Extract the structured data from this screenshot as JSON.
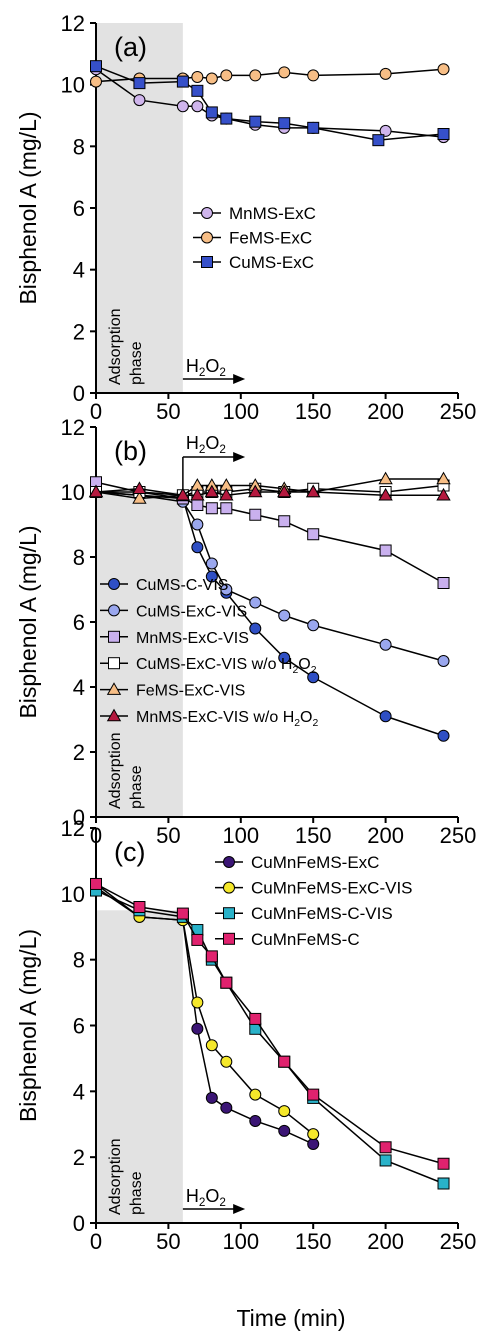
{
  "figure": {
    "xlabel": "Time (min)"
  },
  "chart_data": [
    {
      "type": "line",
      "panel_label": "(a)",
      "ylabel": "Bisphenol A (mg/L)",
      "xlim": [
        0,
        250
      ],
      "ylim": [
        0,
        12
      ],
      "xticks": [
        0,
        50,
        100,
        150,
        200,
        250
      ],
      "yticks": [
        0,
        2,
        4,
        6,
        8,
        10,
        12
      ],
      "shaded_region": {
        "x": [
          0,
          60
        ],
        "y": [
          0,
          12
        ],
        "label_lines": [
          "Adsorption",
          "phase"
        ],
        "color": "#e2e2e2"
      },
      "h2o2_arrow": {
        "x_start": 60,
        "x_end": 103,
        "label": {
          "base": "H",
          "sub1": "2",
          "mid": "O",
          "sub2": "2"
        }
      },
      "legend": "center-right",
      "series": [
        {
          "name": "MnMS-ExC",
          "marker": "circle",
          "color": "#cfb5ec",
          "x": [
            0,
            30,
            60,
            70,
            80,
            90,
            110,
            130,
            150,
            200,
            240
          ],
          "y": [
            10.5,
            9.5,
            9.3,
            9.3,
            9.0,
            8.9,
            8.7,
            8.6,
            8.6,
            8.5,
            8.3
          ]
        },
        {
          "name": "FeMS-ExC",
          "marker": "circle",
          "color": "#f7be86",
          "x": [
            0,
            30,
            60,
            70,
            80,
            90,
            110,
            130,
            150,
            200,
            240
          ],
          "y": [
            10.1,
            10.2,
            10.2,
            10.25,
            10.2,
            10.3,
            10.3,
            10.4,
            10.3,
            10.35,
            10.5
          ]
        },
        {
          "name": "CuMS-ExC",
          "marker": "square",
          "color": "#3650c9",
          "x": [
            0,
            30,
            60,
            70,
            80,
            90,
            110,
            130,
            150,
            195,
            240
          ],
          "y": [
            10.6,
            10.05,
            10.1,
            9.8,
            9.1,
            8.9,
            8.8,
            8.75,
            8.6,
            8.2,
            8.4
          ]
        }
      ]
    },
    {
      "type": "line",
      "panel_label": "(b)",
      "ylabel": "Bisphenol A (mg/L)",
      "xlim": [
        0,
        250
      ],
      "ylim": [
        0,
        12
      ],
      "xticks": [
        0,
        50,
        100,
        150,
        200,
        250
      ],
      "yticks": [
        0,
        2,
        4,
        6,
        8,
        10,
        12
      ],
      "shaded_region": {
        "x": [
          0,
          60
        ],
        "y": [
          0,
          10
        ],
        "label_lines": [
          "Adsorption",
          "phase"
        ],
        "color": "#e2e2e2"
      },
      "h2o2_arrow": {
        "x_start": 60,
        "x_end": 103,
        "label": {
          "base": "H",
          "sub1": "2",
          "mid": "O",
          "sub2": "2"
        }
      },
      "legend": "lower-left",
      "series": [
        {
          "name": "CuMS-C-VIS",
          "marker": "circle",
          "color": "#2f4fc4",
          "x": [
            0,
            30,
            60,
            70,
            80,
            90,
            110,
            130,
            150,
            200,
            240
          ],
          "y": [
            10.0,
            9.9,
            9.8,
            8.3,
            7.4,
            6.9,
            5.8,
            4.9,
            4.3,
            3.1,
            2.5
          ]
        },
        {
          "name": "CuMS-ExC-VIS",
          "marker": "circle",
          "color": "#9aa7ee",
          "x": [
            0,
            30,
            60,
            70,
            80,
            90,
            110,
            130,
            150,
            200,
            240
          ],
          "y": [
            10.0,
            9.9,
            9.7,
            9.0,
            7.8,
            7.0,
            6.6,
            6.2,
            5.9,
            5.3,
            4.8
          ]
        },
        {
          "name": "MnMS-ExC-VIS",
          "marker": "square",
          "color": "#c9b0ee",
          "x": [
            0,
            30,
            60,
            70,
            80,
            90,
            110,
            130,
            150,
            200,
            240
          ],
          "y": [
            10.3,
            10.0,
            9.8,
            9.6,
            9.5,
            9.5,
            9.3,
            9.1,
            8.7,
            8.2,
            7.2
          ]
        },
        {
          "name_parts": {
            "base": "CuMS-ExC-VIS w/o H",
            "sub1": "2",
            "mid": "O",
            "sub2": "2"
          },
          "marker": "square",
          "color": "#ffffff",
          "x": [
            0,
            30,
            60,
            70,
            80,
            90,
            110,
            130,
            150,
            200,
            240
          ],
          "y": [
            10.0,
            10.0,
            9.9,
            10.0,
            10.0,
            10.0,
            10.1,
            10.0,
            10.1,
            10.0,
            10.2
          ]
        },
        {
          "name": "FeMS-ExC-VIS",
          "marker": "triangle",
          "color": "#f7be86",
          "x": [
            0,
            30,
            60,
            70,
            80,
            90,
            110,
            130,
            150,
            200,
            240
          ],
          "y": [
            10.0,
            9.8,
            9.9,
            10.2,
            10.2,
            10.2,
            10.2,
            10.1,
            10.0,
            10.4,
            10.4
          ]
        },
        {
          "name_parts": {
            "base": "MnMS-ExC-VIS w/o H",
            "sub1": "2",
            "mid": "O",
            "sub2": "2"
          },
          "marker": "triangle",
          "color": "#b5193f",
          "x": [
            0,
            30,
            60,
            70,
            80,
            90,
            110,
            130,
            150,
            200,
            240
          ],
          "y": [
            10.0,
            10.1,
            9.9,
            9.9,
            10.0,
            9.9,
            10.0,
            10.0,
            10.0,
            9.9,
            9.9
          ]
        }
      ]
    },
    {
      "type": "line",
      "panel_label": "(c)",
      "ylabel": "Bisphenol A (mg/L)",
      "xlim": [
        0,
        250
      ],
      "ylim": [
        0,
        12
      ],
      "xticks": [
        0,
        50,
        100,
        150,
        200,
        250
      ],
      "yticks": [
        0,
        2,
        4,
        6,
        8,
        10,
        12
      ],
      "shaded_region": {
        "x": [
          0,
          60
        ],
        "y": [
          0,
          9.5
        ],
        "label_lines": [
          "Adsorption",
          "phase"
        ],
        "color": "#e2e2e2"
      },
      "h2o2_arrow": {
        "x_start": 60,
        "x_end": 103,
        "label": {
          "base": "H",
          "sub1": "2",
          "mid": "O",
          "sub2": "2"
        }
      },
      "legend": "top-right",
      "series": [
        {
          "name": "CuMnFeMS-ExC",
          "marker": "circle",
          "color": "#3b1575",
          "x": [
            0,
            30,
            60,
            70,
            80,
            90,
            110,
            130,
            150
          ],
          "y": [
            10.2,
            9.3,
            9.2,
            5.9,
            3.8,
            3.5,
            3.1,
            2.8,
            2.4
          ]
        },
        {
          "name": "CuMnFeMS-ExC-VIS",
          "marker": "circle",
          "color": "#f5e82a",
          "x": [
            0,
            30,
            60,
            70,
            80,
            90,
            110,
            130,
            150
          ],
          "y": [
            10.3,
            9.3,
            9.2,
            6.7,
            5.4,
            4.9,
            3.9,
            3.4,
            2.7
          ]
        },
        {
          "name": "CuMnFeMS-C-VIS",
          "marker": "square",
          "color": "#29b2c9",
          "x": [
            0,
            30,
            60,
            70,
            80,
            90,
            110,
            130,
            150,
            200,
            240
          ],
          "y": [
            10.1,
            9.5,
            9.3,
            8.9,
            8.0,
            7.3,
            5.9,
            4.9,
            3.8,
            1.9,
            1.2
          ]
        },
        {
          "name": "CuMnFeMS-C",
          "marker": "square",
          "color": "#e0226e",
          "x": [
            0,
            30,
            60,
            70,
            80,
            90,
            110,
            130,
            150,
            200,
            240
          ],
          "y": [
            10.3,
            9.6,
            9.4,
            8.6,
            8.1,
            7.3,
            6.2,
            4.9,
            3.9,
            2.3,
            1.8
          ]
        }
      ]
    }
  ]
}
